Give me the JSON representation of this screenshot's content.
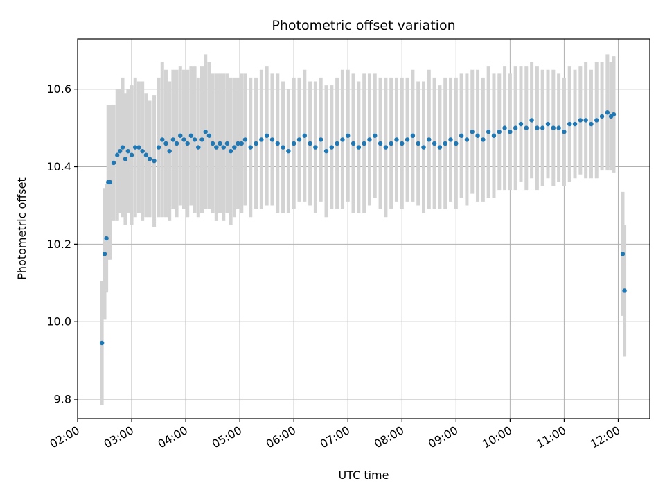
{
  "chart_data": {
    "type": "scatter",
    "title": "Photometric offset variation",
    "xlabel": "UTC time",
    "ylabel": "Photometric offset",
    "xlim": [
      "02:00",
      "12:35"
    ],
    "ylim": [
      9.75,
      10.73
    ],
    "x_ticks": [
      "02:00",
      "03:00",
      "04:00",
      "05:00",
      "06:00",
      "07:00",
      "08:00",
      "09:00",
      "10:00",
      "11:00",
      "12:00"
    ],
    "y_ticks": [
      "9.8",
      "10.0",
      "10.2",
      "10.4",
      "10.6"
    ],
    "grid": true,
    "legend": "none",
    "colors": {
      "points": "#1f77b4",
      "error_bars": "#d3d3d3",
      "grid": "#b0b0b0"
    },
    "series": [
      {
        "x": [
          "02:27",
          "02:30",
          "02:32",
          "02:34",
          "02:36",
          "02:40",
          "02:44",
          "02:47",
          "02:50",
          "02:53",
          "02:56",
          "03:00",
          "03:04",
          "03:08",
          "03:12",
          "03:16",
          "03:20",
          "03:25",
          "03:30",
          "03:34",
          "03:38",
          "03:42",
          "03:46",
          "03:50",
          "03:54",
          "03:58",
          "04:02",
          "04:06",
          "04:10",
          "04:14",
          "04:18",
          "04:22",
          "04:26",
          "04:30",
          "04:34",
          "04:38",
          "04:42",
          "04:46",
          "04:50",
          "04:54",
          "04:58",
          "05:02",
          "05:06",
          "05:12",
          "05:18",
          "05:24",
          "05:30",
          "05:36",
          "05:42",
          "05:48",
          "05:54",
          "06:00",
          "06:06",
          "06:12",
          "06:18",
          "06:24",
          "06:30",
          "06:36",
          "06:42",
          "06:48",
          "06:54",
          "07:00",
          "07:06",
          "07:12",
          "07:18",
          "07:24",
          "07:30",
          "07:36",
          "07:42",
          "07:48",
          "07:54",
          "08:00",
          "08:06",
          "08:12",
          "08:18",
          "08:24",
          "08:30",
          "08:36",
          "08:42",
          "08:48",
          "08:54",
          "09:00",
          "09:06",
          "09:12",
          "09:18",
          "09:24",
          "09:30",
          "09:36",
          "09:42",
          "09:48",
          "09:54",
          "10:00",
          "10:06",
          "10:12",
          "10:18",
          "10:24",
          "10:30",
          "10:36",
          "10:42",
          "10:48",
          "10:54",
          "11:00",
          "11:06",
          "11:12",
          "11:18",
          "11:24",
          "11:30",
          "11:36",
          "11:42",
          "11:48",
          "11:52",
          "11:55",
          "12:05",
          "12:07"
        ],
        "y": [
          9.945,
          10.175,
          10.215,
          10.36,
          10.36,
          10.41,
          10.43,
          10.44,
          10.45,
          10.42,
          10.44,
          10.43,
          10.45,
          10.45,
          10.44,
          10.43,
          10.42,
          10.415,
          10.45,
          10.47,
          10.46,
          10.44,
          10.47,
          10.46,
          10.48,
          10.47,
          10.46,
          10.48,
          10.47,
          10.45,
          10.47,
          10.49,
          10.48,
          10.46,
          10.45,
          10.46,
          10.45,
          10.46,
          10.44,
          10.45,
          10.46,
          10.46,
          10.47,
          10.45,
          10.46,
          10.47,
          10.48,
          10.47,
          10.46,
          10.45,
          10.44,
          10.46,
          10.47,
          10.48,
          10.46,
          10.45,
          10.47,
          10.44,
          10.45,
          10.46,
          10.47,
          10.48,
          10.46,
          10.45,
          10.46,
          10.47,
          10.48,
          10.46,
          10.45,
          10.46,
          10.47,
          10.46,
          10.47,
          10.48,
          10.46,
          10.45,
          10.47,
          10.46,
          10.45,
          10.46,
          10.47,
          10.46,
          10.48,
          10.47,
          10.49,
          10.48,
          10.47,
          10.49,
          10.48,
          10.49,
          10.5,
          10.49,
          10.5,
          10.51,
          10.5,
          10.52,
          10.5,
          10.5,
          10.51,
          10.5,
          10.5,
          10.49,
          10.51,
          10.51,
          10.52,
          10.52,
          10.51,
          10.52,
          10.53,
          10.54,
          10.53,
          10.535,
          10.175,
          10.08
        ],
        "err": [
          0.16,
          0.17,
          0.14,
          0.2,
          0.2,
          0.15,
          0.17,
          0.16,
          0.18,
          0.17,
          0.16,
          0.18,
          0.18,
          0.17,
          0.18,
          0.16,
          0.15,
          0.17,
          0.18,
          0.2,
          0.19,
          0.18,
          0.18,
          0.19,
          0.18,
          0.18,
          0.19,
          0.18,
          0.19,
          0.18,
          0.19,
          0.2,
          0.19,
          0.18,
          0.19,
          0.18,
          0.19,
          0.18,
          0.19,
          0.18,
          0.17,
          0.18,
          0.17,
          0.18,
          0.17,
          0.18,
          0.18,
          0.17,
          0.18,
          0.17,
          0.16,
          0.17,
          0.16,
          0.17,
          0.16,
          0.17,
          0.16,
          0.17,
          0.16,
          0.17,
          0.18,
          0.17,
          0.18,
          0.17,
          0.18,
          0.17,
          0.16,
          0.17,
          0.18,
          0.17,
          0.16,
          0.17,
          0.16,
          0.17,
          0.16,
          0.17,
          0.18,
          0.17,
          0.16,
          0.17,
          0.16,
          0.17,
          0.16,
          0.17,
          0.16,
          0.17,
          0.16,
          0.17,
          0.16,
          0.15,
          0.16,
          0.15,
          0.16,
          0.15,
          0.16,
          0.15,
          0.16,
          0.15,
          0.14,
          0.15,
          0.14,
          0.14,
          0.15,
          0.14,
          0.14,
          0.15,
          0.14,
          0.15,
          0.14,
          0.15,
          0.14,
          0.15,
          0.16,
          0.17
        ]
      }
    ]
  }
}
